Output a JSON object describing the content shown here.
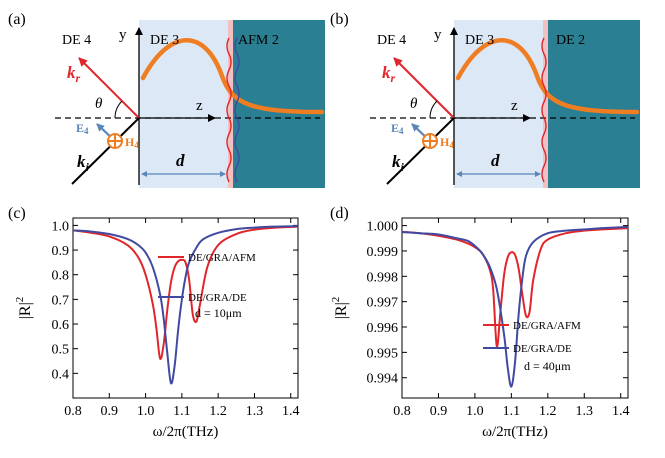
{
  "panels": {
    "a": {
      "letter": "(a)",
      "region_left": "DE 4",
      "region_mid": "DE 3",
      "region_right": "AFM 2",
      "axis_y": "y",
      "axis_z": "z",
      "theta": "θ",
      "k_r": "k",
      "k_r_sub": "r",
      "k_i": "k",
      "k_i_sub": "i",
      "E": "E",
      "E_sub": "4",
      "H": "H",
      "H_sub": "4",
      "d": "d"
    },
    "b": {
      "letter": "(b)",
      "region_left": "DE 4",
      "region_mid": "DE 3",
      "region_right": "DE 2",
      "axis_y": "y",
      "axis_z": "z",
      "theta": "θ",
      "k_r": "k",
      "k_r_sub": "r",
      "k_i": "k",
      "k_i_sub": "i",
      "E": "E",
      "E_sub": "4",
      "H": "H",
      "H_sub": "4",
      "d": "d"
    }
  },
  "colors": {
    "region_light": "#dce8f6",
    "region_dark": "#2b7f92",
    "graphene": "#f2c0c0",
    "wave_orange": "#ef7d22",
    "red_line": "#e0262b",
    "blue_line": "#3f4aa0",
    "arrow_blue": "#5a86b9"
  },
  "chart_data": [
    {
      "panel": "(c)",
      "type": "line",
      "xlabel": "ω/2π(THz)",
      "ylabel": "|R|",
      "ylabel_sup": "2",
      "xlim": [
        0.8,
        1.42
      ],
      "ylim": [
        0.3,
        1.03
      ],
      "xticks": [
        "0.8",
        "0.9",
        "1.0",
        "1.1",
        "1.2",
        "1.3",
        "1.4"
      ],
      "yticks": [
        "0.4",
        "0.5",
        "0.6",
        "0.7",
        "0.8",
        "0.9",
        "1.0"
      ],
      "legend": [
        "DE/GRA/AFM",
        "DE/GRA/DE"
      ],
      "annotation": "d = 10μm",
      "series": [
        {
          "name": "DE/GRA/AFM",
          "color": "#e0262b",
          "x": [
            0.8,
            0.85,
            0.9,
            0.95,
            0.98,
            1.0,
            1.02,
            1.03,
            1.04,
            1.05,
            1.06,
            1.07,
            1.08,
            1.09,
            1.1,
            1.11,
            1.12,
            1.13,
            1.14,
            1.15,
            1.17,
            1.2,
            1.25,
            1.3,
            1.35,
            1.42
          ],
          "y": [
            0.98,
            0.97,
            0.955,
            0.92,
            0.87,
            0.8,
            0.68,
            0.58,
            0.46,
            0.52,
            0.66,
            0.77,
            0.83,
            0.855,
            0.86,
            0.85,
            0.78,
            0.64,
            0.61,
            0.68,
            0.83,
            0.92,
            0.965,
            0.983,
            0.99,
            0.995
          ]
        },
        {
          "name": "DE/GRA/DE",
          "color": "#3f4aa0",
          "x": [
            0.8,
            0.85,
            0.9,
            0.95,
            0.98,
            1.0,
            1.02,
            1.04,
            1.05,
            1.06,
            1.07,
            1.08,
            1.09,
            1.1,
            1.11,
            1.12,
            1.14,
            1.16,
            1.2,
            1.25,
            1.3,
            1.35,
            1.42
          ],
          "y": [
            0.98,
            0.975,
            0.965,
            0.945,
            0.92,
            0.89,
            0.83,
            0.72,
            0.62,
            0.48,
            0.36,
            0.43,
            0.58,
            0.7,
            0.79,
            0.85,
            0.91,
            0.945,
            0.97,
            0.985,
            0.991,
            0.995,
            0.997
          ]
        }
      ]
    },
    {
      "panel": "(d)",
      "type": "line",
      "xlabel": "ω/2π(THz)",
      "ylabel": "|R|",
      "ylabel_sup": "2",
      "xlim": [
        0.8,
        1.42
      ],
      "ylim": [
        0.9932,
        1.0003
      ],
      "xticks": [
        "0.8",
        "0.9",
        "1.0",
        "1.1",
        "1.2",
        "1.3",
        "1.4"
      ],
      "yticks": [
        "0.994",
        "0.995",
        "0.996",
        "0.997",
        "0.998",
        "0.999",
        "1.000"
      ],
      "legend": [
        "DE/GRA/AFM",
        "DE/GRA/DE"
      ],
      "annotation": "d = 40μm",
      "series": [
        {
          "name": "DE/GRA/AFM",
          "color": "#e0262b",
          "x": [
            0.8,
            0.85,
            0.9,
            0.95,
            0.98,
            1.0,
            1.02,
            1.04,
            1.05,
            1.06,
            1.07,
            1.08,
            1.09,
            1.1,
            1.11,
            1.12,
            1.13,
            1.14,
            1.15,
            1.16,
            1.18,
            1.2,
            1.25,
            1.3,
            1.35,
            1.42
          ],
          "y": [
            0.99975,
            0.9997,
            0.9996,
            0.99945,
            0.9993,
            0.99915,
            0.9989,
            0.9983,
            0.9975,
            0.99525,
            0.9966,
            0.99805,
            0.99875,
            0.99895,
            0.99885,
            0.9983,
            0.9973,
            0.99645,
            0.9966,
            0.99785,
            0.99905,
            0.99945,
            0.9997,
            0.9998,
            0.99985,
            0.9999
          ]
        },
        {
          "name": "DE/GRA/DE",
          "color": "#3f4aa0",
          "x": [
            0.8,
            0.85,
            0.9,
            0.95,
            0.98,
            1.0,
            1.02,
            1.04,
            1.06,
            1.08,
            1.09,
            1.1,
            1.11,
            1.12,
            1.13,
            1.14,
            1.16,
            1.2,
            1.25,
            1.3,
            1.35,
            1.42
          ],
          "y": [
            0.99975,
            0.9997,
            0.99965,
            0.9995,
            0.9994,
            0.9992,
            0.9989,
            0.9984,
            0.9975,
            0.9957,
            0.9944,
            0.99365,
            0.9946,
            0.9965,
            0.9979,
            0.9988,
            0.99935,
            0.9997,
            0.9998,
            0.99985,
            0.9999,
            0.99995
          ]
        }
      ]
    }
  ]
}
